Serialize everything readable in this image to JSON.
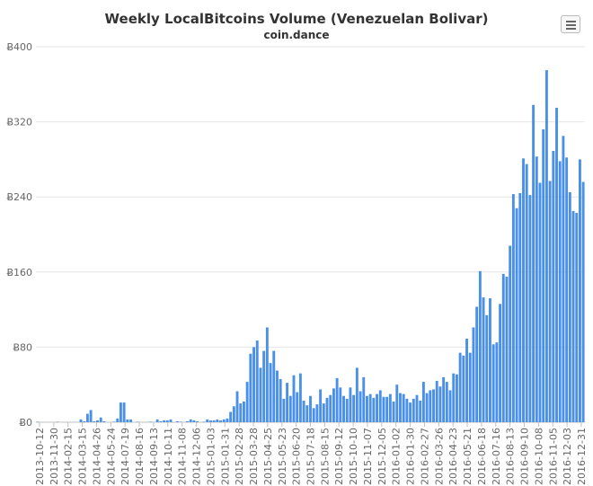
{
  "chart_data": {
    "type": "bar",
    "title": "Weekly LocalBitcoins Volume (Venezuelan Bolivar)",
    "subtitle": "coin.dance",
    "ylim": [
      0,
      400
    ],
    "y_ticks": [
      "Ƀ0",
      "Ƀ80",
      "Ƀ160",
      "Ƀ240",
      "Ƀ320",
      "Ƀ400"
    ],
    "y_tick_values": [
      0,
      80,
      160,
      240,
      320,
      400
    ],
    "x_tick_labels": [
      "2013-10-12",
      "2013-11-30",
      "2014-02-15",
      "2014-03-15",
      "2014-04-26",
      "2014-05-24",
      "2014-07-19",
      "2014-08-16",
      "2014-09-13",
      "2014-10-11",
      "2014-11-08",
      "2014-12-06",
      "2015-01-03",
      "2015-01-31",
      "2015-02-28",
      "2015-03-28",
      "2015-04-25",
      "2015-05-23",
      "2015-06-20",
      "2015-07-18",
      "2015-08-15",
      "2015-09-12",
      "2015-10-10",
      "2015-11-07",
      "2015-12-05",
      "2016-01-02",
      "2016-01-30",
      "2016-02-27",
      "2016-03-26",
      "2016-04-23",
      "2016-05-21",
      "2016-06-18",
      "2016-07-16",
      "2016-08-13",
      "2016-09-10",
      "2016-10-08",
      "2016-11-05",
      "2016-12-03",
      "2016-12-31"
    ],
    "grid": true,
    "legend": "none",
    "bar_color": "#4a90e8",
    "values": [
      0.5,
      0,
      0,
      0,
      0,
      0,
      0.5,
      0,
      0,
      0,
      0,
      0,
      0,
      3,
      1,
      9,
      13,
      1,
      2,
      5,
      1,
      0,
      0,
      0.5,
      4,
      21,
      21,
      3,
      3,
      0,
      0.5,
      0,
      0,
      0,
      0.5,
      0,
      3,
      1,
      2,
      2,
      3,
      0,
      1,
      0.5,
      0,
      1,
      3,
      2,
      1,
      0,
      0.5,
      3,
      2,
      2,
      3,
      2,
      3,
      4,
      11,
      17,
      33,
      20,
      22,
      43,
      73,
      80,
      87,
      58,
      76,
      101,
      63,
      76,
      55,
      46,
      25,
      42,
      28,
      50,
      32,
      52,
      23,
      18,
      28,
      15,
      19,
      35,
      20,
      26,
      29,
      36,
      47,
      37,
      28,
      25,
      37,
      29,
      58,
      33,
      48,
      28,
      30,
      26,
      30,
      34,
      27,
      27,
      30,
      22,
      40,
      31,
      30,
      25,
      21,
      25,
      29,
      23,
      43,
      31,
      34,
      35,
      44,
      38,
      48,
      43,
      34,
      52,
      51,
      74,
      71,
      89,
      74,
      101,
      123,
      161,
      133,
      114,
      132,
      83,
      85,
      126,
      158,
      155,
      188,
      243,
      228,
      244,
      281,
      275,
      242,
      338,
      283,
      255,
      312,
      375,
      257,
      289,
      335,
      278,
      305,
      282,
      245,
      225,
      223,
      280,
      256
    ]
  }
}
